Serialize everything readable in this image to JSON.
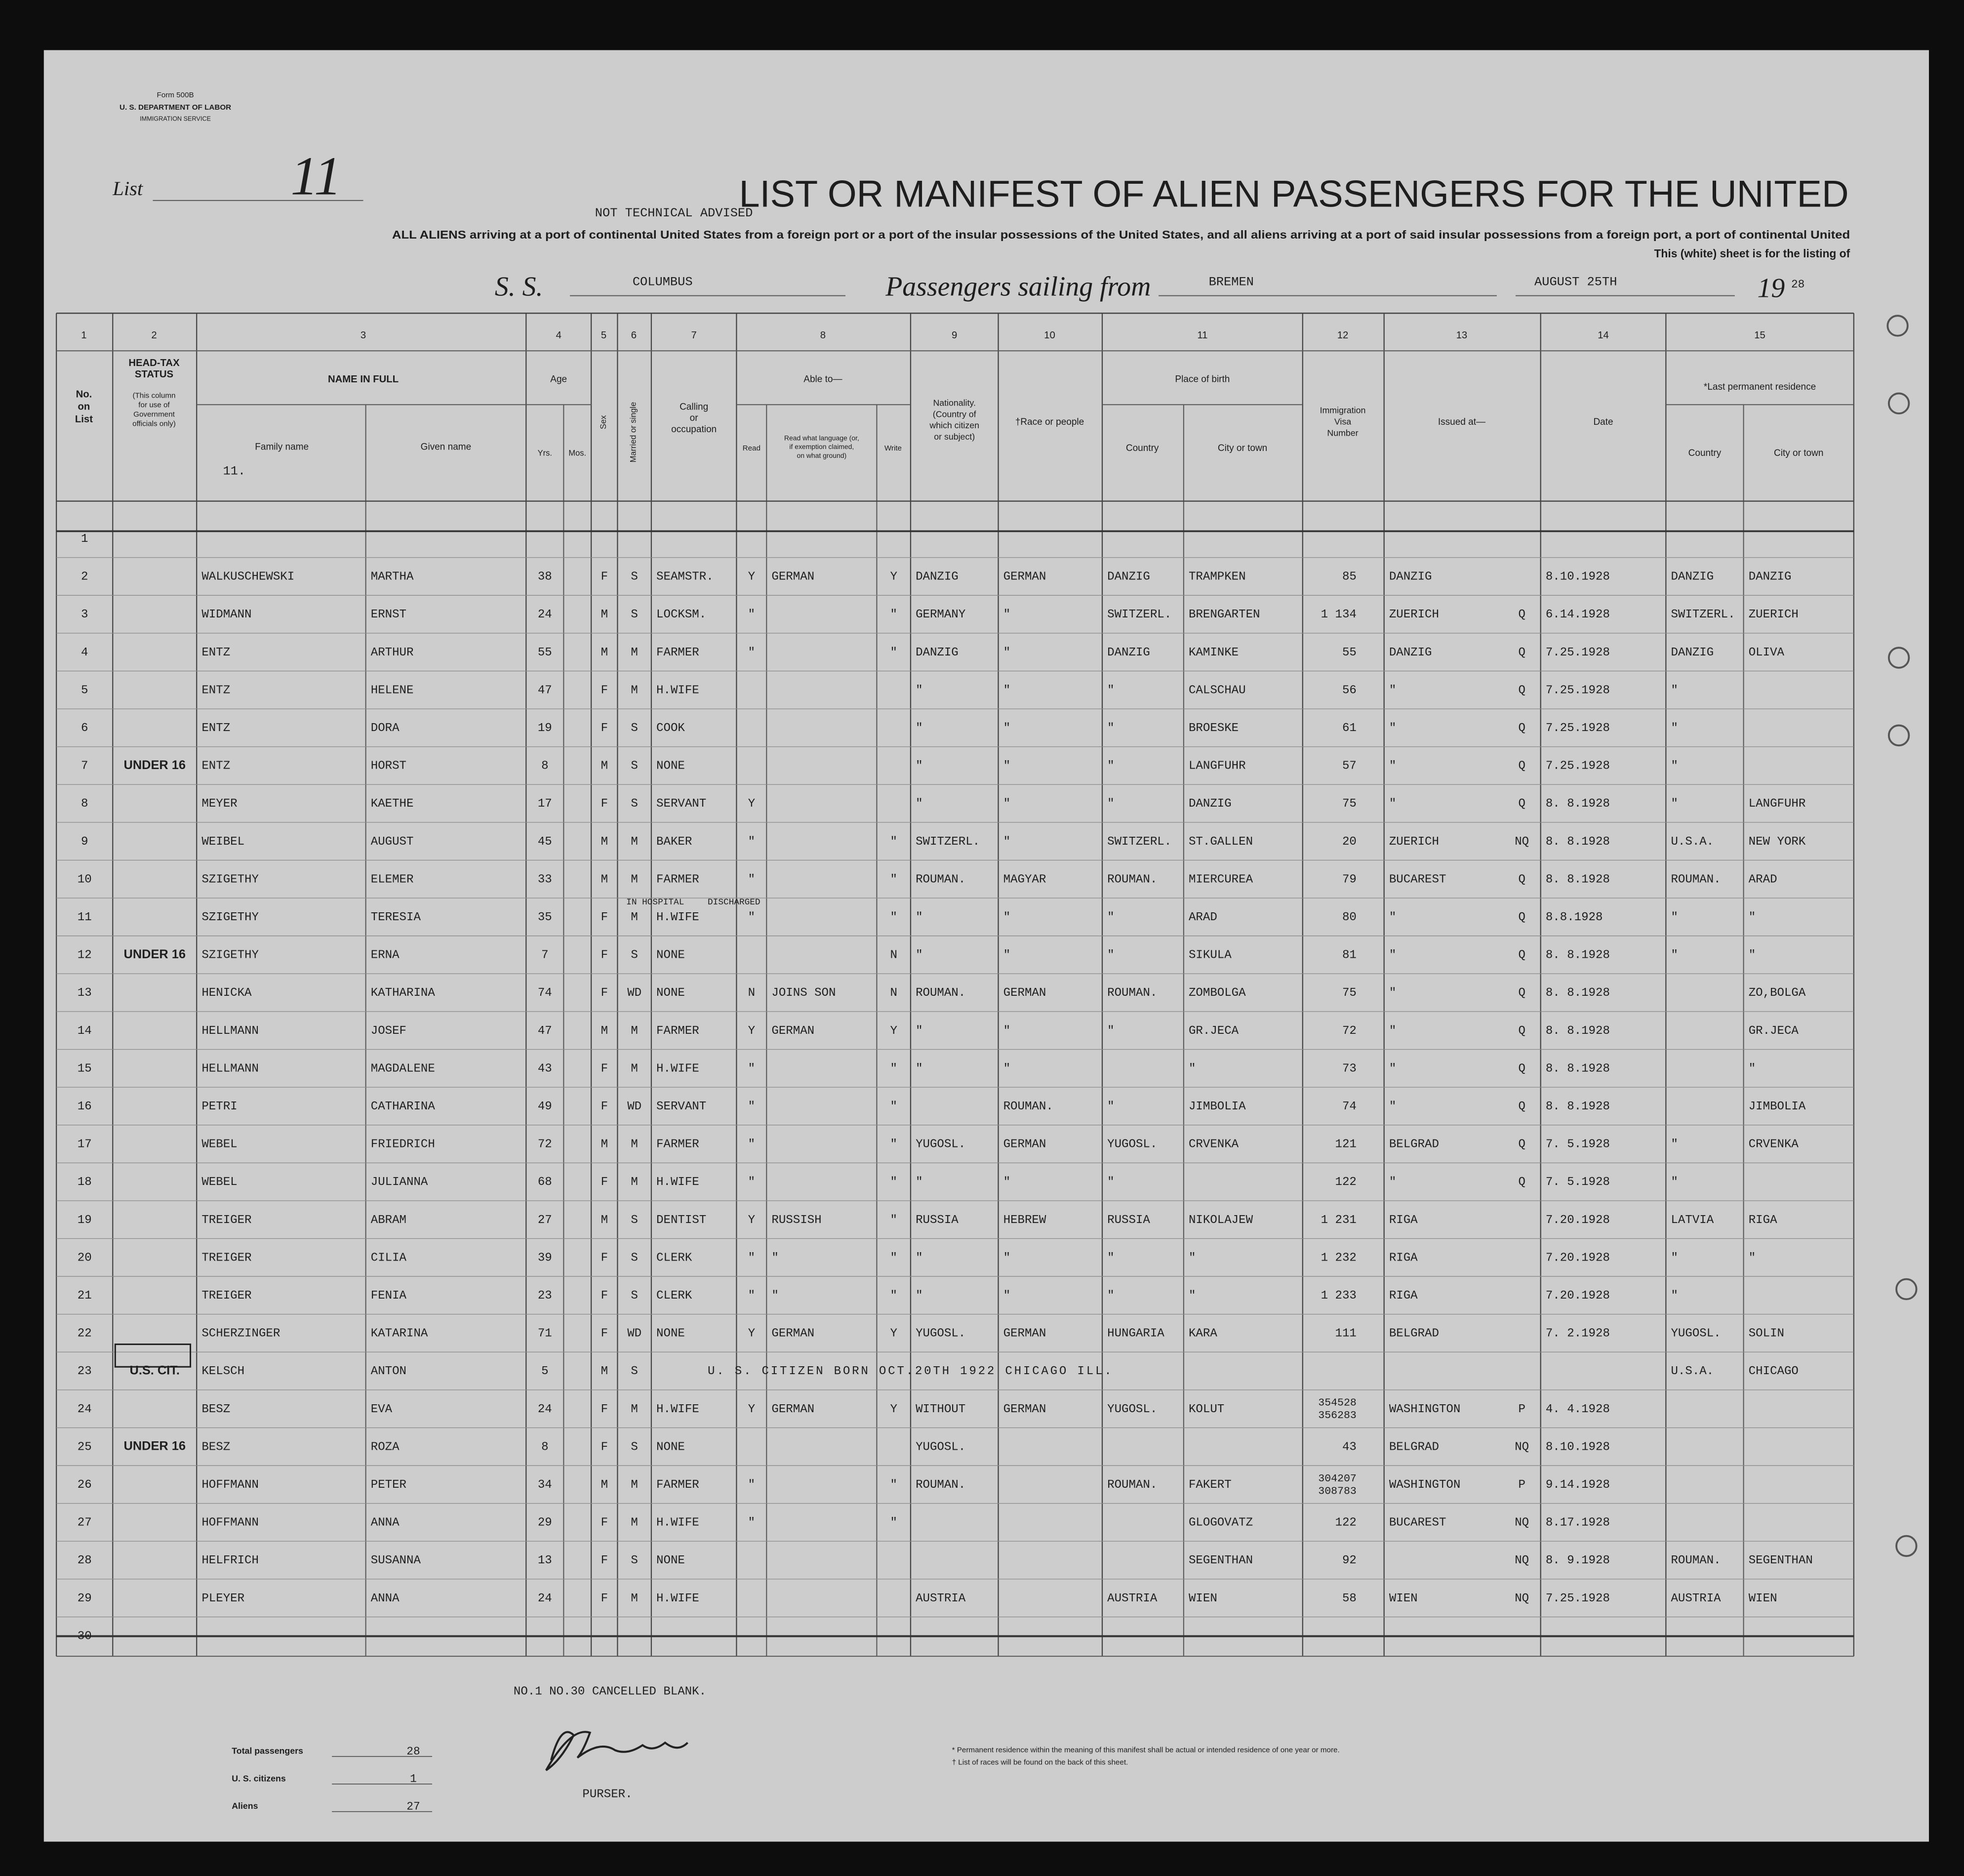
{
  "form": {
    "number": "Form 500B",
    "department": "U. S. DEPARTMENT OF LABOR",
    "service": "IMMIGRATION SERVICE"
  },
  "list": {
    "label": "List",
    "number": "11"
  },
  "title": "LIST OR MANIFEST OF ALIEN PASSENGERS FOR THE UNITED",
  "stamp": "NOT TECHNICAL ADVISED",
  "subtitle": "ALL ALIENS arriving at a port of continental United States from a foreign port or a port of the insular possessions of the United States, and all aliens arriving at a port of said insular possessions from a foreign port, a port of continental United",
  "sheet_note": "This (white) sheet is for the listing of",
  "voyage": {
    "ss_label": "S. S.",
    "ship": "COLUMBUS",
    "sailing_label": "Passengers sailing from",
    "port": "BREMEN",
    "date": "AUGUST 25TH",
    "year_prefix": "19",
    "year_suffix": "28"
  },
  "column_numbers": [
    "1",
    "2",
    "3",
    "4",
    "5",
    "6",
    "7",
    "8",
    "9",
    "10",
    "11",
    "12",
    "13",
    "14",
    "15"
  ],
  "headers": [
    [
      "No.",
      "on",
      "List"
    ],
    [
      "HEAD-TAX",
      "STATUS"
    ],
    [
      "(This column",
      "for use of",
      "Government",
      "officials only)"
    ],
    [
      "NAME IN FULL"
    ],
    [
      "Family name"
    ],
    [
      "Given name"
    ],
    [
      "Age"
    ],
    [
      "Yrs."
    ],
    [
      "Mos."
    ],
    [
      "Sex"
    ],
    [
      "Married or single"
    ],
    [
      "Calling",
      "or",
      "occupation"
    ],
    [
      "Able to—"
    ],
    [
      "Read"
    ],
    [
      "Read what language (or,",
      "if exemption claimed,",
      "on what ground)"
    ],
    [
      "Write"
    ],
    [
      "Nationality.",
      "(Country of",
      "which citizen",
      "or subject)"
    ],
    [
      "†Race or people"
    ],
    [
      "Place of birth"
    ],
    [
      "Country"
    ],
    [
      "City or town"
    ],
    [
      "Immigration",
      "Visa",
      "Number"
    ],
    [
      "Issued at—"
    ],
    [
      "Date"
    ],
    [
      "*Last permanent residence"
    ],
    [
      "Country"
    ],
    [
      "City or town"
    ]
  ],
  "table": {
    "family_prefix": "11.",
    "rows": [
      {
        "cells": [
          "1",
          null,
          null,
          null,
          null,
          null,
          null,
          null,
          null,
          null,
          null,
          null,
          null,
          null,
          null,
          null,
          null,
          null,
          null,
          null,
          null,
          null
        ]
      },
      {
        "cells": [
          "2",
          null,
          "WALKUSCHEWSKI",
          "MARTHA",
          "38",
          null,
          "F",
          "S",
          "SEAMSTR.",
          "Y",
          "GERMAN",
          "Y",
          "DANZIG",
          "GERMAN",
          "DANZIG",
          "TRAMPKEN",
          "85",
          "DANZIG",
          null,
          "8.10.1928",
          "DANZIG",
          "DANZIG"
        ]
      },
      {
        "cells": [
          "3",
          null,
          "WIDMANN",
          "ERNST",
          "24",
          null,
          "M",
          "S",
          "LOCKSM.",
          "\"",
          null,
          "\"",
          "GERMANY",
          "\"",
          "SWITZERL.",
          "BRENGARTEN",
          "1 134",
          "ZUERICH",
          "Q",
          "6.14.1928",
          "SWITZERL.",
          "ZUERICH"
        ]
      },
      {
        "cells": [
          "4",
          null,
          "ENTZ",
          "ARTHUR",
          "55",
          null,
          "M",
          "M",
          "FARMER",
          "\"",
          null,
          "\"",
          "DANZIG",
          "\"",
          "DANZIG",
          "KAMINKE",
          "55",
          "DANZIG",
          "Q",
          "7.25.1928",
          "DANZIG",
          "OLIVA"
        ]
      },
      {
        "cells": [
          "5",
          null,
          "ENTZ",
          "HELENE",
          "47",
          null,
          "F",
          "M",
          "H.WIFE",
          null,
          null,
          null,
          "\"",
          "\"",
          "\"",
          "CALSCHAU",
          "56",
          "\"",
          "Q",
          "7.25.1928",
          "\"",
          null
        ]
      },
      {
        "cells": [
          "6",
          null,
          "ENTZ",
          "DORA",
          "19",
          null,
          "F",
          "S",
          "COOK",
          null,
          null,
          null,
          "\"",
          "\"",
          "\"",
          "BROESKE",
          "61",
          "\"",
          "Q",
          "7.25.1928",
          "\"",
          null
        ]
      },
      {
        "cells": [
          "7",
          "UNDER 16",
          "ENTZ",
          "HORST",
          "8",
          null,
          "M",
          "S",
          "NONE",
          null,
          null,
          null,
          "\"",
          "\"",
          "\"",
          "LANGFUHR",
          "57",
          "\"",
          "Q",
          "7.25.1928",
          "\"",
          null
        ]
      },
      {
        "cells": [
          "8",
          null,
          "MEYER",
          "KAETHE",
          "17",
          null,
          "F",
          "S",
          "SERVANT",
          "Y",
          null,
          null,
          "\"",
          "\"",
          "\"",
          "DANZIG",
          "75",
          "\"",
          "Q",
          "8. 8.1928",
          "\"",
          "LANGFUHR"
        ]
      },
      {
        "cells": [
          "9",
          null,
          "WEIBEL",
          "AUGUST",
          "45",
          null,
          "M",
          "M",
          "BAKER",
          "\"",
          null,
          "\"",
          "SWITZERL.",
          "\"",
          "SWITZERL.",
          "ST.GALLEN",
          "20",
          "ZUERICH",
          "NQ",
          "8. 8.1928",
          "U.S.A.",
          "NEW YORK"
        ]
      },
      {
        "cells": [
          "10",
          null,
          "SZIGETHY",
          "ELEMER",
          "33",
          null,
          "M",
          "M",
          "FARMER",
          "\"",
          null,
          "\"",
          "ROUMAN.",
          "MAGYAR",
          "ROUMAN.",
          "MIERCUREA",
          "79",
          "BUCAREST",
          "Q",
          "8. 8.1928",
          "ROUMAN.",
          "ARAD"
        ]
      },
      {
        "cells": [
          "11",
          null,
          "SZIGETHY",
          "TERESIA",
          "35",
          null,
          "F",
          "M",
          "H.WIFE",
          "\"",
          null,
          "\"",
          "\"",
          "\"",
          "\"",
          "ARAD",
          "80",
          "\"",
          "Q",
          "8.8.1928",
          "\"",
          "\""
        ],
        "annotations": [
          "IN HOSPITAL",
          "DISCHARGED"
        ]
      },
      {
        "cells": [
          "12",
          "UNDER 16",
          "SZIGETHY",
          "ERNA",
          "7",
          null,
          "F",
          "S",
          "NONE",
          null,
          null,
          "N",
          "\"",
          "\"",
          "\"",
          "SIKULA",
          "81",
          "\"",
          "Q",
          "8. 8.1928",
          "\"",
          "\""
        ]
      },
      {
        "cells": [
          "13",
          null,
          "HENICKA",
          "KATHARINA",
          "74",
          null,
          "F",
          "WD",
          "NONE",
          "N",
          "JOINS SON",
          "N",
          "ROUMAN.",
          "GERMAN",
          "ROUMAN.",
          "ZOMBOLGA",
          "75",
          "\"",
          "Q",
          "8. 8.1928",
          null,
          "ZO,BOLGA"
        ]
      },
      {
        "cells": [
          "14",
          null,
          "HELLMANN",
          "JOSEF",
          "47",
          null,
          "M",
          "M",
          "FARMER",
          "Y",
          "GERMAN",
          "Y",
          "\"",
          "\"",
          "\"",
          "GR.JECA",
          "72",
          "\"",
          "Q",
          "8. 8.1928",
          null,
          "GR.JECA"
        ]
      },
      {
        "cells": [
          "15",
          null,
          "HELLMANN",
          "MAGDALENE",
          "43",
          null,
          "F",
          "M",
          "H.WIFE",
          "\"",
          null,
          "\"",
          "\"",
          "\"",
          null,
          "\"",
          "73",
          "\"",
          "Q",
          "8. 8.1928",
          null,
          "\""
        ]
      },
      {
        "cells": [
          "16",
          null,
          "PETRI",
          "CATHARINA",
          "49",
          null,
          "F",
          "WD",
          "SERVANT",
          "\"",
          null,
          "\"",
          null,
          "ROUMAN.",
          "\"",
          "JIMBOLIA",
          "74",
          "\"",
          "Q",
          "8. 8.1928",
          null,
          "JIMBOLIA"
        ]
      },
      {
        "cells": [
          "17",
          null,
          "WEBEL",
          "FRIEDRICH",
          "72",
          null,
          "M",
          "M",
          "FARMER",
          "\"",
          null,
          "\"",
          "YUGOSL.",
          "GERMAN",
          "YUGOSL.",
          "CRVENKA",
          "121",
          "BELGRAD",
          "Q",
          "7. 5.1928",
          "\"",
          "CRVENKA"
        ]
      },
      {
        "cells": [
          "18",
          null,
          "WEBEL",
          "JULIANNA",
          "68",
          null,
          "F",
          "M",
          "H.WIFE",
          "\"",
          null,
          "\"",
          "\"",
          "\"",
          "\"",
          null,
          "122",
          "\"",
          "Q",
          "7. 5.1928",
          "\"",
          null
        ]
      },
      {
        "cells": [
          "19",
          null,
          "TREIGER",
          "ABRAM",
          "27",
          null,
          "M",
          "S",
          "DENTIST",
          "Y",
          "RUSSISH",
          "\"",
          "RUSSIA",
          "HEBREW",
          "RUSSIA",
          "NIKOLAJEW",
          "1 231",
          "RIGA",
          null,
          "7.20.1928",
          "LATVIA",
          "RIGA"
        ]
      },
      {
        "cells": [
          "20",
          null,
          "TREIGER",
          "CILIA",
          "39",
          null,
          "F",
          "S",
          "CLERK",
          "\"",
          "\"",
          "\"",
          "\"",
          "\"",
          "\"",
          "\"",
          "1 232",
          "RIGA",
          null,
          "7.20.1928",
          "\"",
          "\""
        ]
      },
      {
        "cells": [
          "21",
          null,
          "TREIGER",
          "FENIA",
          "23",
          null,
          "F",
          "S",
          "CLERK",
          "\"",
          "\"",
          "\"",
          "\"",
          "\"",
          "\"",
          "\"",
          "1 233",
          "RIGA",
          null,
          "7.20.1928",
          "\"",
          null
        ]
      },
      {
        "cells": [
          "22",
          null,
          "SCHERZINGER",
          "KATARINA",
          "71",
          null,
          "F",
          "WD",
          "NONE",
          "Y",
          "GERMAN",
          "Y",
          "YUGOSL.",
          "GERMAN",
          "HUNGARIA",
          "KARA",
          "111",
          "BELGRAD",
          null,
          "7. 2.1928",
          "YUGOSL.",
          "SOLIN"
        ]
      },
      {
        "cells": [
          "23",
          "U.S. CIT.",
          "KELSCH",
          "ANTON",
          "5",
          null,
          "M",
          "S",
          null,
          null,
          null,
          null,
          null,
          null,
          null,
          null,
          null,
          null,
          null,
          null,
          "U.S.A.",
          "CHICAGO"
        ],
        "note": "U. S. CITIZEN BORN OCT.20TH 1922 CHICAGO ILL."
      },
      {
        "cells": [
          "24",
          null,
          "BESZ",
          "EVA",
          "24",
          null,
          "F",
          "M",
          "H.WIFE",
          "Y",
          "GERMAN",
          "Y",
          "WITHOUT",
          "GERMAN",
          "YUGOSL.",
          "KOLUT",
          "354528 356283",
          "WASHINGTON",
          "P",
          "4. 4.1928",
          null,
          null
        ]
      },
      {
        "cells": [
          "25",
          "UNDER 16",
          "BESZ",
          "ROZA",
          "8",
          null,
          "F",
          "S",
          "NONE",
          null,
          null,
          null,
          "YUGOSL.",
          null,
          null,
          null,
          "43",
          "BELGRAD",
          "NQ",
          "8.10.1928",
          null,
          null
        ]
      },
      {
        "cells": [
          "26",
          null,
          "HOFFMANN",
          "PETER",
          "34",
          null,
          "M",
          "M",
          "FARMER",
          "\"",
          null,
          "\"",
          "ROUMAN.",
          null,
          "ROUMAN.",
          "FAKERT",
          "304207 308783",
          "WASHINGTON",
          "P",
          "9.14.1928",
          null,
          null
        ]
      },
      {
        "cells": [
          "27",
          null,
          "HOFFMANN",
          "ANNA",
          "29",
          null,
          "F",
          "M",
          "H.WIFE",
          "\"",
          null,
          "\"",
          null,
          null,
          null,
          "GLOGOVATZ",
          "122",
          "BUCAREST",
          "NQ",
          "8.17.1928",
          null,
          null
        ]
      },
      {
        "cells": [
          "28",
          null,
          "HELFRICH",
          "SUSANNA",
          "13",
          null,
          "F",
          "S",
          "NONE",
          null,
          null,
          null,
          null,
          null,
          null,
          "SEGENTHAN",
          "92",
          null,
          "NQ",
          "8. 9.1928",
          "ROUMAN.",
          "SEGENTHAN"
        ]
      },
      {
        "cells": [
          "29",
          null,
          "PLEYER",
          "ANNA",
          "24",
          null,
          "F",
          "M",
          "H.WIFE",
          null,
          null,
          null,
          "AUSTRIA",
          null,
          "AUSTRIA",
          "WIEN",
          "58",
          "WIEN",
          "NQ",
          "7.25.1928",
          "AUSTRIA",
          "WIEN"
        ]
      },
      {
        "cells": [
          "30",
          null,
          null,
          null,
          null,
          null,
          null,
          null,
          null,
          null,
          null,
          null,
          null,
          null,
          null,
          null,
          null,
          null,
          null,
          null,
          null,
          null
        ]
      }
    ]
  },
  "footer": {
    "cancelled": "NO.1 NO.30 CANCELLED BLANK.",
    "totals": [
      {
        "label": "Total passengers",
        "value": "28"
      },
      {
        "label": "U. S. citizens",
        "value": "1"
      },
      {
        "label": "Aliens",
        "value": "27"
      }
    ],
    "purser": "PURSER.",
    "footnotes": [
      "* Permanent residence within the meaning of this manifest shall be actual or intended residence of one year or more.",
      "† List of races will be found on the back of this sheet."
    ]
  }
}
